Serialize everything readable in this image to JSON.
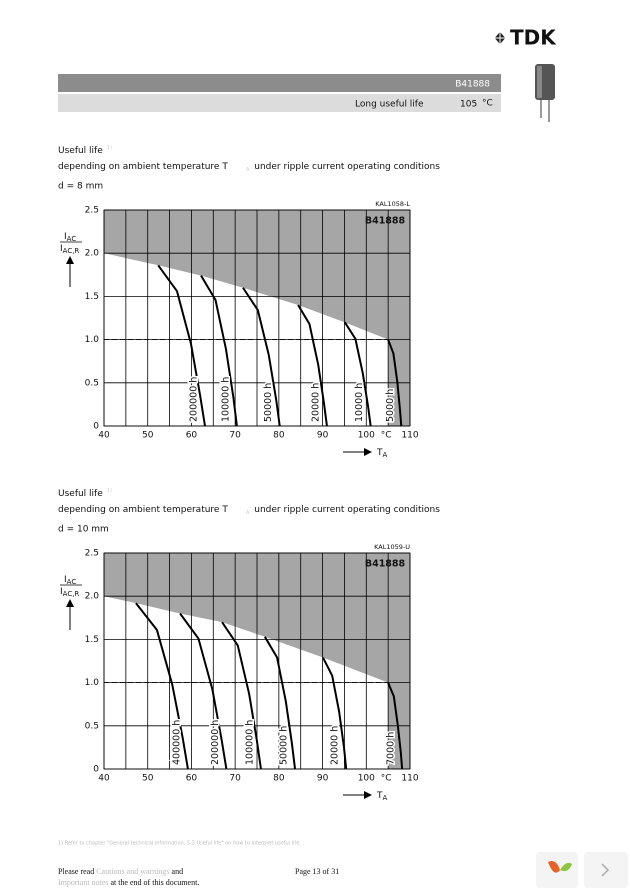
{
  "header": {
    "brand": "TDK",
    "part": "B41888",
    "subtitle": "Long useful life",
    "temp": "105",
    "temp_unit": "°C"
  },
  "charts": [
    {
      "title": "Useful life",
      "title_note": "1)",
      "caption_pre": "depending on ambient temperature T",
      "caption_sub": "A",
      "caption_post": "under ripple current operating conditions",
      "size": "d = 8 mm",
      "code": "KAL1058-L",
      "series_label": "B41888",
      "y_label": "I",
      "y_label_sub": "AC",
      "y_label_den": "I",
      "y_label_den_sub": "AC,R",
      "x_label": "T",
      "x_label_sub": "A",
      "x_unit": "°C",
      "xlim": [
        40,
        110
      ],
      "ylim": [
        0,
        2.5
      ],
      "xticks": [
        40,
        50,
        60,
        70,
        80,
        90,
        100,
        110
      ],
      "xgrid": [
        40,
        45,
        50,
        55,
        60,
        65,
        70,
        75,
        80,
        85,
        90,
        95,
        100,
        105,
        110
      ],
      "yticks": [
        0,
        0.5,
        {
          "value": 1,
          "label": "1.0"
        },
        1.5,
        {
          "value": 2,
          "label": "2.0"
        },
        2.5
      ],
      "ref_y": 1,
      "ref_x": 105,
      "limit": {
        "x": [
          40,
          52.4,
          62.2,
          71.8,
          84.4,
          95.1,
          105,
          105
        ],
        "y": [
          2.0,
          1.86,
          1.74,
          1.6,
          1.4,
          1.2,
          1.0,
          0
        ]
      },
      "curves": [
        {
          "label": "200000 h",
          "x": [
            52.4,
            56.7,
            59.9,
            62.0,
            63.1
          ],
          "y": [
            1.86,
            1.56,
            0.95,
            0.35,
            0
          ]
        },
        {
          "label": "100000 h",
          "x": [
            62.2,
            65.5,
            67.9,
            69.6,
            70.4
          ],
          "y": [
            1.74,
            1.46,
            0.89,
            0.33,
            0
          ]
        },
        {
          "label": "50000 h",
          "x": [
            71.8,
            75.2,
            77.7,
            79.4,
            80.2
          ],
          "y": [
            1.6,
            1.34,
            0.82,
            0.3,
            0
          ]
        },
        {
          "label": "20000 h",
          "x": [
            84.4,
            87.0,
            89.0,
            90.3,
            91.0
          ],
          "y": [
            1.4,
            1.18,
            0.71,
            0.27,
            0
          ]
        },
        {
          "label": "10000 h",
          "x": [
            95.1,
            97.5,
            99.2,
            100.4,
            101.0
          ],
          "y": [
            1.2,
            1.01,
            0.61,
            0.23,
            0
          ]
        },
        {
          "label": "5000 h",
          "x": [
            105,
            106.2,
            107.1,
            107.7,
            108
          ],
          "y": [
            1.0,
            0.84,
            0.51,
            0.19,
            0
          ]
        }
      ]
    },
    {
      "title": "Useful life",
      "title_note": "1)",
      "caption_pre": "depending on ambient temperature T",
      "caption_sub": "A",
      "caption_post": "under ripple current operating conditions",
      "size": "d = 10 mm",
      "code": "KAL1059-U",
      "series_label": "B41888",
      "y_label": "I",
      "y_label_sub": "AC",
      "y_label_den": "I",
      "y_label_den_sub": "AC,R",
      "x_label": "T",
      "x_label_sub": "A",
      "x_unit": "°C",
      "xlim": [
        40,
        110
      ],
      "ylim": [
        0,
        2.5
      ],
      "xticks": [
        40,
        50,
        60,
        70,
        80,
        90,
        100,
        110
      ],
      "xgrid": [
        40,
        45,
        50,
        55,
        60,
        65,
        70,
        75,
        80,
        85,
        90,
        95,
        100,
        105,
        110
      ],
      "yticks": [
        0,
        0.5,
        {
          "value": 1,
          "label": "1.0"
        },
        1.5,
        {
          "value": 2,
          "label": "2.0"
        },
        2.5
      ],
      "ref_y": 1,
      "ref_x": 105,
      "limit": {
        "x": [
          40,
          47.3,
          57.4,
          67,
          76.8,
          90.1,
          105,
          105
        ],
        "y": [
          2.0,
          1.92,
          1.8,
          1.7,
          1.53,
          1.29,
          1.0,
          0
        ]
      },
      "curves": [
        {
          "label": "400000 h",
          "x": [
            47.3,
            52.1,
            55.6,
            58.0,
            59.2
          ],
          "y": [
            1.92,
            1.61,
            0.98,
            0.36,
            0
          ]
        },
        {
          "label": "200000 h",
          "x": [
            57.4,
            61.6,
            64.8,
            66.9,
            68.0
          ],
          "y": [
            1.8,
            1.51,
            0.92,
            0.34,
            0
          ]
        },
        {
          "label": "100000 h",
          "x": [
            67,
            70.6,
            73.2,
            75.0,
            75.9
          ],
          "y": [
            1.7,
            1.43,
            0.87,
            0.32,
            0
          ]
        },
        {
          "label": "50000 h",
          "x": [
            76.8,
            79.6,
            81.6,
            83.0,
            83.7
          ],
          "y": [
            1.53,
            1.29,
            0.78,
            0.29,
            0
          ]
        },
        {
          "label": "20000 h",
          "x": [
            90.1,
            92.2,
            93.8,
            94.9,
            95.4
          ],
          "y": [
            1.29,
            1.08,
            0.66,
            0.25,
            0
          ]
        },
        {
          "label": "7000 h",
          "x": [
            105,
            106.3,
            107.2,
            107.9,
            108.2
          ],
          "y": [
            1.0,
            0.84,
            0.51,
            0.19,
            0
          ]
        }
      ]
    }
  ],
  "footnote": "1) Refer to chapter \"General technical information, 5.3 Useful life\" on how to interpret useful life.",
  "footer": {
    "notice_pre": "Please read",
    "notice_link1": "Cautions and warnings",
    "notice_and": "and",
    "notice_link2": "Important notes",
    "notice_post": "at the end of this document.",
    "page": "Page 13 of 31"
  }
}
